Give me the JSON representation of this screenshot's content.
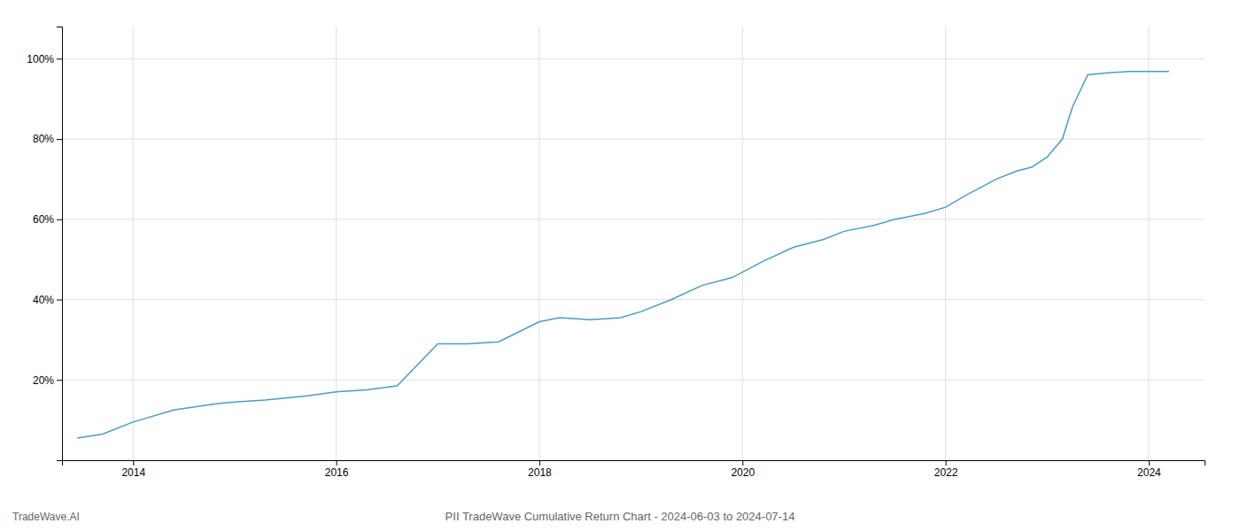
{
  "chart_data": {
    "type": "line",
    "title": "PII TradeWave Cumulative Return Chart - 2024-06-03 to 2024-07-14",
    "annotations": [
      "TradeWave.AI"
    ],
    "color": "#4a9cc7",
    "x": [
      2013.45,
      2013.7,
      2014.0,
      2014.4,
      2014.8,
      2015.0,
      2015.3,
      2015.7,
      2016.0,
      2016.3,
      2016.6,
      2017.0,
      2017.3,
      2017.6,
      2018.0,
      2018.2,
      2018.5,
      2018.8,
      2019.0,
      2019.3,
      2019.6,
      2019.9,
      2020.2,
      2020.5,
      2020.8,
      2021.0,
      2021.3,
      2021.5,
      2021.8,
      2022.0,
      2022.2,
      2022.5,
      2022.7,
      2022.85,
      2023.0,
      2023.15,
      2023.25,
      2023.4,
      2023.6,
      2023.8,
      2024.0,
      2024.2
    ],
    "values": [
      5.5,
      6.5,
      9.5,
      12.5,
      14.0,
      14.5,
      15.0,
      16.0,
      17.0,
      17.5,
      18.5,
      29.0,
      29.0,
      29.5,
      34.5,
      35.5,
      35.0,
      35.5,
      37.0,
      40.0,
      43.5,
      45.5,
      49.5,
      53.0,
      55.0,
      57.0,
      58.5,
      60.0,
      61.5,
      63.0,
      66.0,
      70.0,
      72.0,
      73.0,
      75.5,
      80.0,
      88.0,
      96.0,
      96.5,
      96.8,
      96.8,
      96.8
    ],
    "xlim": [
      2013.3,
      2024.55
    ],
    "ylim": [
      0,
      108
    ],
    "xticks": [
      2014,
      2016,
      2018,
      2020,
      2022,
      2024
    ],
    "yticks": [
      {
        "value": 20,
        "label": "20%"
      },
      {
        "value": 40,
        "label": "40%"
      },
      {
        "value": 60,
        "label": "60%"
      },
      {
        "value": 80,
        "label": "80%"
      },
      {
        "value": 100,
        "label": "100%"
      }
    ],
    "grid": true
  }
}
